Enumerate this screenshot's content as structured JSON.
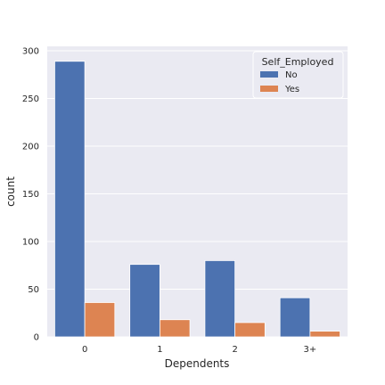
{
  "chart_data": {
    "type": "bar",
    "categories": [
      "0",
      "1",
      "2",
      "3+"
    ],
    "series": [
      {
        "name": "No",
        "values": [
          289,
          76,
          80,
          41
        ],
        "color": "#4c72b0"
      },
      {
        "name": "Yes",
        "values": [
          36,
          18,
          15,
          6
        ],
        "color": "#dd8452"
      }
    ],
    "xlabel": "Dependents",
    "ylabel": "count",
    "ylim": [
      0,
      300
    ],
    "yticks": [
      0,
      50,
      100,
      150,
      200,
      250,
      300
    ],
    "grid": true,
    "legend": {
      "title": "Self_Employed",
      "placement": "top-right"
    },
    "background": "#eaeaf2"
  }
}
